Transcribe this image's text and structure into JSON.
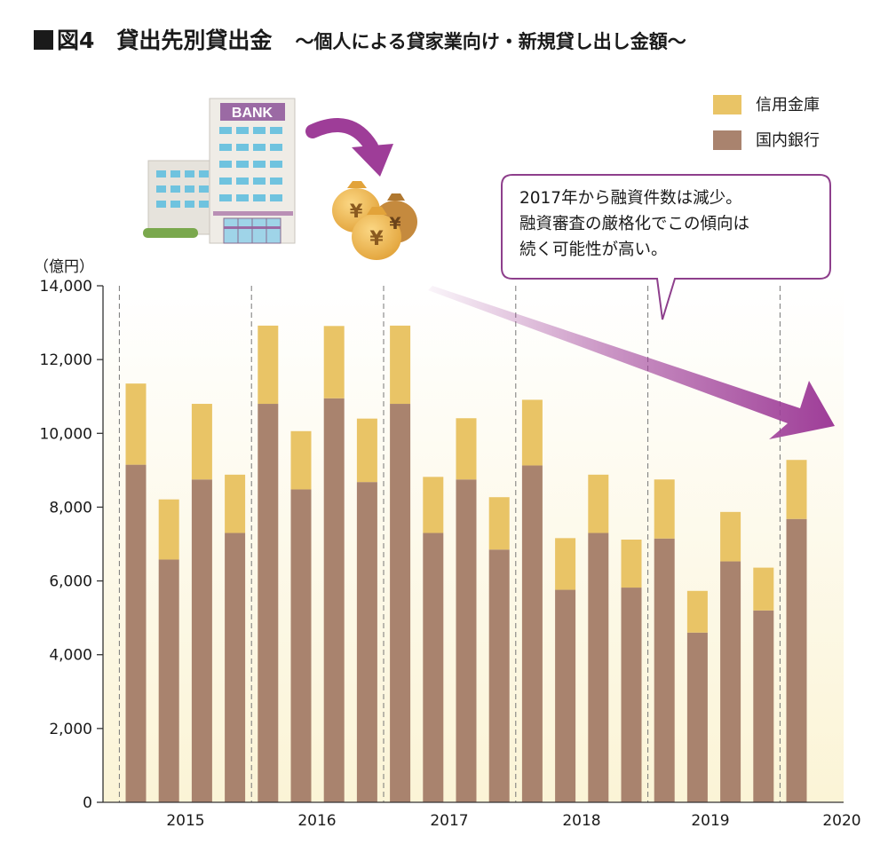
{
  "title": {
    "fig_label": "図4",
    "main": "貸出先別貸出金",
    "subtitle": "〜個人による貸家業向け・新規貸し出し金額〜"
  },
  "colors": {
    "shinkin": "#e9c466",
    "kokunai": "#a9836e",
    "arrow": "#9e3d98",
    "bg_gradient_bottom": "#fbf4d6"
  },
  "icons": [
    "bank-building-icon",
    "curved-arrow-icon",
    "yen-money-bags-icon",
    "downtrend-arrow-icon"
  ],
  "bank_sign": "BANK",
  "yen_symbol": "¥",
  "callout": {
    "lines": [
      "2017年から融資件数は減少。",
      "融資審査の厳格化でこの傾向は",
      "続く可能性が高い。"
    ]
  },
  "chart_data": {
    "type": "bar",
    "stacked": true,
    "unit_label": "（億円）",
    "ylim": [
      0,
      14000
    ],
    "y_ticks": [
      "0",
      "2,000",
      "4,000",
      "6,000",
      "8,000",
      "10,000",
      "12,000",
      "14,000"
    ],
    "x_ticks": [
      "2015",
      "2016",
      "2017",
      "2018",
      "2019",
      "2020"
    ],
    "grid": "vertical dashed year separators",
    "legend_position": "top-right",
    "series": [
      {
        "name": "国内銀行",
        "values": [
          9150,
          6580,
          8750,
          7300,
          10800,
          8480,
          10950,
          8680,
          10800,
          7300,
          8750,
          6850,
          9130,
          5760,
          7300,
          5820,
          7150,
          4600,
          6530,
          5200,
          7680
        ]
      },
      {
        "name": "信用金庫",
        "values": [
          2200,
          1630,
          2050,
          1580,
          2120,
          1580,
          1960,
          1720,
          2120,
          1520,
          1660,
          1420,
          1780,
          1400,
          1580,
          1300,
          1600,
          1130,
          1340,
          1160,
          1600
        ]
      }
    ],
    "groups": [
      {
        "label": "2015",
        "count": 4
      },
      {
        "label": "2016",
        "count": 4
      },
      {
        "label": "2017",
        "count": 4
      },
      {
        "label": "2018",
        "count": 4
      },
      {
        "label": "2019",
        "count": 4
      },
      {
        "label": "2020",
        "count": 1
      }
    ]
  }
}
